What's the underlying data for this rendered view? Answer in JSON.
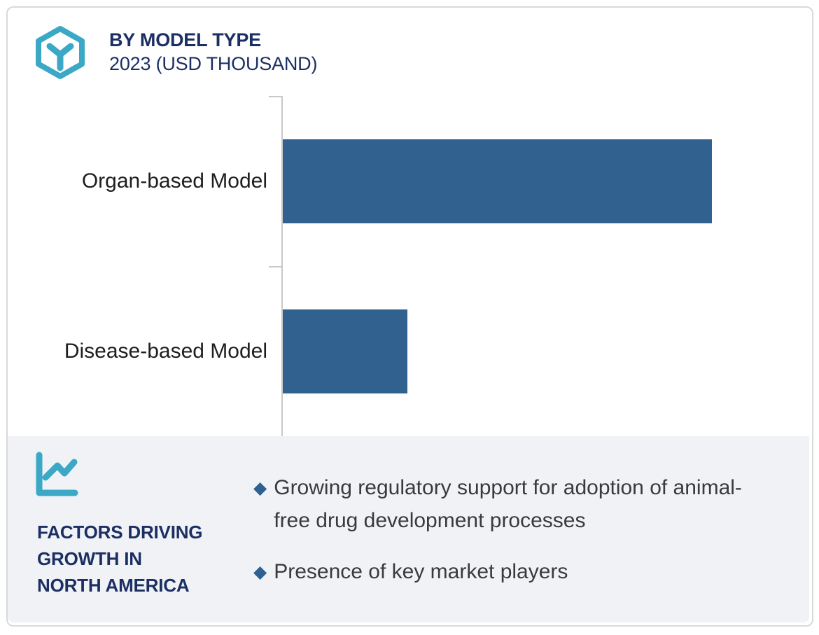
{
  "header": {
    "title": "BY MODEL TYPE",
    "subtitle": "2023 (USD THOUSAND)"
  },
  "chart_data": {
    "type": "bar",
    "orientation": "horizontal",
    "title": "BY MODEL TYPE",
    "subtitle": "2023 (USD THOUSAND)",
    "unit": "USD THOUSAND",
    "categories": [
      "Organ-based Model",
      "Disease-based Model"
    ],
    "values": [
      100,
      29
    ],
    "values_note": "no numeric data labels shown in chart; values are relative bar lengths (Organ-based = 100)",
    "xlabel": "",
    "ylabel": "",
    "grid": false,
    "legend": false,
    "bar_color": "#30618F",
    "axis_color": "#C9C9C9"
  },
  "factors": {
    "heading_lines": [
      "FACTORS DRIVING",
      "GROWTH IN",
      "NORTH AMERICA"
    ],
    "bullets": [
      "Growing regulatory support for adoption of animal-free drug development processes",
      "Presence of key market players"
    ]
  },
  "icons": {
    "logo": "hexagon-molecule-icon",
    "panel": "line-chart-icon",
    "bullet": "diamond-bullet-icon"
  },
  "colors": {
    "navy": "#1C2F63",
    "teal": "#3BA8C6",
    "bar_blue": "#30618F",
    "bullet_diamond": "#2E618F",
    "panel_bg": "#F0F2F6",
    "axis_gray": "#C9C9C9",
    "card_border": "#D9D9D9",
    "label_text": "#1E1E1E",
    "bullet_text": "#3A3A3A"
  }
}
